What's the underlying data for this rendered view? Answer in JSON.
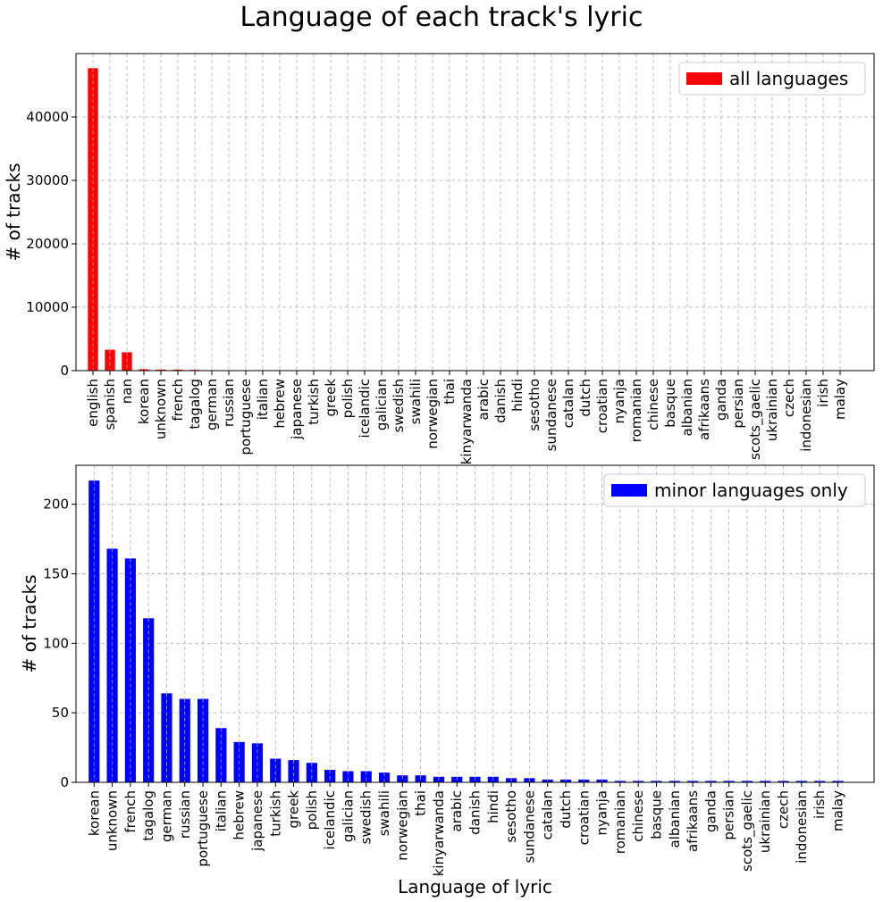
{
  "figure": {
    "title": "Language of each track's lyric"
  },
  "chart_data": [
    {
      "type": "bar",
      "title": "",
      "xlabel": "",
      "ylabel": "# of tracks",
      "legend": "all languages",
      "legend_position": "top-right",
      "grid": true,
      "color": "#ff0000",
      "ylim": [
        0,
        50000
      ],
      "yticks": [
        0,
        10000,
        20000,
        30000,
        40000
      ],
      "categories": [
        "english",
        "spanish",
        "nan",
        "korean",
        "unknown",
        "french",
        "tagalog",
        "german",
        "russian",
        "portuguese",
        "italian",
        "hebrew",
        "japanese",
        "turkish",
        "greek",
        "polish",
        "icelandic",
        "galician",
        "swedish",
        "swahili",
        "norwegian",
        "thai",
        "kinyarwanda",
        "arabic",
        "danish",
        "hindi",
        "sesotho",
        "sundanese",
        "catalan",
        "dutch",
        "croatian",
        "nyanja",
        "romanian",
        "chinese",
        "basque",
        "albanian",
        "afrikaans",
        "ganda",
        "persian",
        "scots_gaelic",
        "ukrainian",
        "czech",
        "indonesian",
        "irish",
        "malay"
      ],
      "values": [
        47700,
        3300,
        2900,
        217,
        168,
        161,
        118,
        64,
        60,
        60,
        39,
        29,
        28,
        17,
        16,
        14,
        9,
        8,
        8,
        7,
        5,
        5,
        4,
        4,
        4,
        4,
        3,
        3,
        2,
        2,
        2,
        2,
        1,
        1,
        1,
        1,
        1,
        1,
        1,
        1,
        1,
        1,
        1,
        1,
        1
      ]
    },
    {
      "type": "bar",
      "title": "",
      "xlabel": "Language of lyric",
      "ylabel": "# of tracks",
      "legend": "minor languages only",
      "legend_position": "top-right",
      "grid": true,
      "color": "#0000ff",
      "ylim": [
        0,
        228
      ],
      "yticks": [
        0,
        50,
        100,
        150,
        200
      ],
      "categories": [
        "korean",
        "unknown",
        "french",
        "tagalog",
        "german",
        "russian",
        "portuguese",
        "italian",
        "hebrew",
        "japanese",
        "turkish",
        "greek",
        "polish",
        "icelandic",
        "galician",
        "swedish",
        "swahili",
        "norwegian",
        "thai",
        "kinyarwanda",
        "arabic",
        "danish",
        "hindi",
        "sesotho",
        "sundanese",
        "catalan",
        "dutch",
        "croatian",
        "nyanja",
        "romanian",
        "chinese",
        "basque",
        "albanian",
        "afrikaans",
        "ganda",
        "persian",
        "scots_gaelic",
        "ukrainian",
        "czech",
        "indonesian",
        "irish",
        "malay"
      ],
      "values": [
        217,
        168,
        161,
        118,
        64,
        60,
        60,
        39,
        29,
        28,
        17,
        16,
        14,
        9,
        8,
        8,
        7,
        5,
        5,
        4,
        4,
        4,
        4,
        3,
        3,
        2,
        2,
        2,
        2,
        1,
        1,
        1,
        1,
        1,
        1,
        1,
        1,
        1,
        1,
        1,
        1,
        1
      ]
    }
  ]
}
